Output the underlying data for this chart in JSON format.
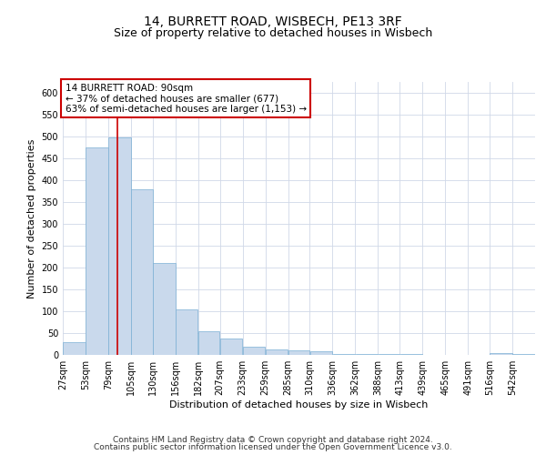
{
  "title": "14, BURRETT ROAD, WISBECH, PE13 3RF",
  "subtitle": "Size of property relative to detached houses in Wisbech",
  "xlabel": "Distribution of detached houses by size in Wisbech",
  "ylabel": "Number of detached properties",
  "bar_color": "#c9d9ec",
  "bar_edge_color": "#7bafd4",
  "marker_line_color": "#cc0000",
  "marker_value": 90,
  "annotation_text": "14 BURRETT ROAD: 90sqm\n← 37% of detached houses are smaller (677)\n63% of semi-detached houses are larger (1,153) →",
  "bins": [
    27,
    53,
    79,
    105,
    130,
    156,
    182,
    207,
    233,
    259,
    285,
    310,
    336,
    362,
    388,
    413,
    439,
    465,
    491,
    516,
    542
  ],
  "values": [
    30,
    475,
    497,
    380,
    210,
    105,
    55,
    37,
    18,
    12,
    11,
    9,
    2,
    2,
    2,
    2,
    1,
    0,
    0,
    4,
    2
  ],
  "ylim": [
    0,
    625
  ],
  "yticks": [
    0,
    50,
    100,
    150,
    200,
    250,
    300,
    350,
    400,
    450,
    500,
    550,
    600
  ],
  "background_color": "#ffffff",
  "grid_color": "#d0d8e8",
  "footer1": "Contains HM Land Registry data © Crown copyright and database right 2024.",
  "footer2": "Contains public sector information licensed under the Open Government Licence v3.0.",
  "title_fontsize": 10,
  "subtitle_fontsize": 9,
  "label_fontsize": 8,
  "tick_fontsize": 7,
  "footer_fontsize": 6.5,
  "annot_fontsize": 7.5
}
